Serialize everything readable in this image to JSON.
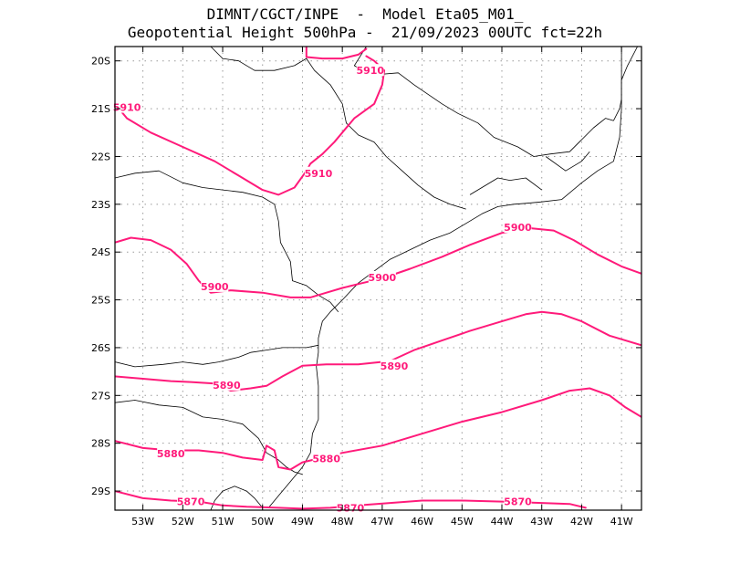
{
  "header": {
    "line1": "DIMNT/CGCT/INPE  -  Model Eta05_M01_",
    "line2": "Geopotential Height 500hPa -  21/09/2023 00UTC fct=22h"
  },
  "colors": {
    "contour": "#ff1a7a",
    "coast": "#000000",
    "grid": "#9a9a9a",
    "frame": "#000000"
  },
  "chart_data": {
    "type": "contour-map",
    "variable": "Geopotential Height 500hPa",
    "units": "gpm",
    "xlim": [
      -53.7,
      -40.5
    ],
    "ylim": [
      -29.4,
      -19.7
    ],
    "x_ticks": [
      {
        "value": -53,
        "label": "53W"
      },
      {
        "value": -52,
        "label": "52W"
      },
      {
        "value": -51,
        "label": "51W"
      },
      {
        "value": -50,
        "label": "50W"
      },
      {
        "value": -49,
        "label": "49W"
      },
      {
        "value": -48,
        "label": "48W"
      },
      {
        "value": -47,
        "label": "47W"
      },
      {
        "value": -46,
        "label": "46W"
      },
      {
        "value": -45,
        "label": "45W"
      },
      {
        "value": -44,
        "label": "44W"
      },
      {
        "value": -43,
        "label": "43W"
      },
      {
        "value": -42,
        "label": "42W"
      },
      {
        "value": -41,
        "label": "41W"
      }
    ],
    "y_ticks": [
      {
        "value": -20,
        "label": "20S"
      },
      {
        "value": -21,
        "label": "21S"
      },
      {
        "value": -22,
        "label": "22S"
      },
      {
        "value": -23,
        "label": "23S"
      },
      {
        "value": -24,
        "label": "24S"
      },
      {
        "value": -25,
        "label": "25S"
      },
      {
        "value": -26,
        "label": "26S"
      },
      {
        "value": -27,
        "label": "27S"
      },
      {
        "value": -28,
        "label": "28S"
      },
      {
        "value": -29,
        "label": "29S"
      }
    ],
    "contours": [
      {
        "level": 5910,
        "points": [
          [
            -53.7,
            -20.9
          ],
          [
            -53.4,
            -21.2
          ],
          [
            -52.8,
            -21.5
          ],
          [
            -52.0,
            -21.8
          ],
          [
            -51.2,
            -22.1
          ],
          [
            -50.6,
            -22.4
          ],
          [
            -50.0,
            -22.7
          ],
          [
            -49.6,
            -22.8
          ],
          [
            -49.2,
            -22.65
          ],
          [
            -48.9,
            -22.3
          ],
          [
            -48.8,
            -22.15
          ],
          [
            -48.5,
            -21.95
          ],
          [
            -48.2,
            -21.7
          ],
          [
            -47.7,
            -21.2
          ],
          [
            -47.2,
            -20.9
          ],
          [
            -47.0,
            -20.5
          ],
          [
            -46.95,
            -20.2
          ],
          [
            -47.2,
            -20.0
          ],
          [
            -47.4,
            -19.9
          ]
        ]
      },
      {
        "level": 5910,
        "points": [
          [
            -48.9,
            -19.7
          ],
          [
            -48.9,
            -19.92
          ],
          [
            -48.5,
            -19.95
          ],
          [
            -48.0,
            -19.95
          ],
          [
            -47.6,
            -19.87
          ],
          [
            -47.4,
            -19.75
          ]
        ]
      },
      {
        "level": 5900,
        "points": [
          [
            -53.7,
            -23.8
          ],
          [
            -53.3,
            -23.7
          ],
          [
            -52.8,
            -23.75
          ],
          [
            -52.3,
            -23.95
          ],
          [
            -51.9,
            -24.25
          ],
          [
            -51.6,
            -24.6
          ],
          [
            -51.3,
            -24.85
          ],
          [
            -50.8,
            -24.8
          ],
          [
            -50.0,
            -24.85
          ],
          [
            -49.3,
            -24.95
          ],
          [
            -48.8,
            -24.95
          ],
          [
            -48.4,
            -24.85
          ],
          [
            -48.0,
            -24.75
          ],
          [
            -47.5,
            -24.65
          ],
          [
            -47.0,
            -24.55
          ],
          [
            -46.3,
            -24.35
          ],
          [
            -45.5,
            -24.1
          ],
          [
            -44.8,
            -23.85
          ],
          [
            -44.0,
            -23.6
          ],
          [
            -43.3,
            -23.5
          ],
          [
            -42.7,
            -23.55
          ],
          [
            -42.2,
            -23.75
          ],
          [
            -41.6,
            -24.05
          ],
          [
            -41.0,
            -24.3
          ],
          [
            -40.5,
            -24.45
          ]
        ]
      },
      {
        "level": 5890,
        "points": [
          [
            -53.7,
            -26.6
          ],
          [
            -53.0,
            -26.65
          ],
          [
            -52.3,
            -26.7
          ],
          [
            -51.8,
            -26.72
          ],
          [
            -51.2,
            -26.75
          ],
          [
            -50.8,
            -26.9
          ],
          [
            -50.3,
            -26.85
          ],
          [
            -49.9,
            -26.8
          ],
          [
            -49.5,
            -26.6
          ],
          [
            -49.0,
            -26.38
          ],
          [
            -48.4,
            -26.35
          ],
          [
            -47.6,
            -26.35
          ],
          [
            -46.8,
            -26.28
          ],
          [
            -46.2,
            -26.05
          ],
          [
            -45.5,
            -25.85
          ],
          [
            -44.8,
            -25.65
          ],
          [
            -44.0,
            -25.45
          ],
          [
            -43.4,
            -25.3
          ],
          [
            -43.0,
            -25.25
          ],
          [
            -42.5,
            -25.3
          ],
          [
            -42.0,
            -25.45
          ],
          [
            -41.3,
            -25.75
          ],
          [
            -40.5,
            -25.95
          ]
        ]
      },
      {
        "level": 5880,
        "points": [
          [
            -53.7,
            -27.95
          ],
          [
            -53.0,
            -28.1
          ],
          [
            -52.3,
            -28.15
          ],
          [
            -51.6,
            -28.15
          ],
          [
            -51.0,
            -28.2
          ],
          [
            -50.5,
            -28.3
          ],
          [
            -50.0,
            -28.35
          ],
          [
            -49.9,
            -28.05
          ],
          [
            -49.7,
            -28.15
          ],
          [
            -49.6,
            -28.5
          ],
          [
            -49.3,
            -28.55
          ],
          [
            -49.0,
            -28.4
          ],
          [
            -48.5,
            -28.3
          ],
          [
            -48.0,
            -28.2
          ],
          [
            -47.0,
            -28.05
          ],
          [
            -46.0,
            -27.8
          ],
          [
            -45.0,
            -27.55
          ],
          [
            -44.0,
            -27.35
          ],
          [
            -43.0,
            -27.1
          ],
          [
            -42.3,
            -26.9
          ],
          [
            -41.8,
            -26.85
          ],
          [
            -41.3,
            -27.0
          ],
          [
            -40.9,
            -27.25
          ],
          [
            -40.5,
            -27.45
          ]
        ]
      },
      {
        "level": 5870,
        "points": [
          [
            -53.7,
            -29.0
          ],
          [
            -53.0,
            -29.15
          ],
          [
            -52.3,
            -29.2
          ],
          [
            -51.6,
            -29.22
          ],
          [
            -51.0,
            -29.3
          ],
          [
            -50.4,
            -29.33
          ],
          [
            -49.6,
            -29.35
          ],
          [
            -49.0,
            -29.37
          ],
          [
            -48.3,
            -29.35
          ],
          [
            -47.6,
            -29.3
          ],
          [
            -46.8,
            -29.25
          ],
          [
            -46.0,
            -29.2
          ],
          [
            -45.0,
            -29.2
          ],
          [
            -44.0,
            -29.22
          ],
          [
            -43.0,
            -29.25
          ],
          [
            -42.3,
            -29.27
          ],
          [
            -41.9,
            -29.35
          ]
        ]
      }
    ],
    "labels": [
      {
        "text": "5910",
        "lon": -53.4,
        "lat": -20.97
      },
      {
        "text": "5910",
        "lon": -47.3,
        "lat": -20.2
      },
      {
        "text": "5910",
        "lon": -48.6,
        "lat": -22.35
      },
      {
        "text": "5900",
        "lon": -51.2,
        "lat": -24.72
      },
      {
        "text": "5900",
        "lon": -47.0,
        "lat": -24.53
      },
      {
        "text": "5900",
        "lon": -43.6,
        "lat": -23.48
      },
      {
        "text": "5890",
        "lon": -50.9,
        "lat": -26.78
      },
      {
        "text": "5890",
        "lon": -46.7,
        "lat": -26.38
      },
      {
        "text": "5880",
        "lon": -52.3,
        "lat": -28.22
      },
      {
        "text": "5880",
        "lon": -48.4,
        "lat": -28.32
      },
      {
        "text": "5870",
        "lon": -51.8,
        "lat": -29.22
      },
      {
        "text": "5870",
        "lon": -47.8,
        "lat": -29.35
      },
      {
        "text": "5870",
        "lon": -43.6,
        "lat": -29.22
      }
    ],
    "boundaries": [
      [
        [
          -47.4,
          -19.7
        ],
        [
          -47.7,
          -20.1
        ],
        [
          -47.3,
          -20.3
        ],
        [
          -46.6,
          -20.25
        ],
        [
          -46.2,
          -20.5
        ],
        [
          -45.5,
          -20.9
        ],
        [
          -45.1,
          -21.1
        ],
        [
          -44.6,
          -21.3
        ],
        [
          -44.2,
          -21.6
        ],
        [
          -43.6,
          -21.8
        ],
        [
          -43.2,
          -22.0
        ],
        [
          -42.8,
          -21.95
        ],
        [
          -42.3,
          -21.9
        ],
        [
          -42.0,
          -21.65
        ],
        [
          -41.7,
          -21.4
        ],
        [
          -41.4,
          -21.2
        ],
        [
          -41.2,
          -21.25
        ]
      ],
      [
        [
          -41.2,
          -21.25
        ],
        [
          -41.05,
          -21.0
        ],
        [
          -41.0,
          -20.8
        ],
        [
          -41.0,
          -20.4
        ],
        [
          -41.0,
          -20.0
        ],
        [
          -41.0,
          -19.7
        ]
      ],
      [
        [
          -40.6,
          -19.7
        ],
        [
          -40.85,
          -20.1
        ],
        [
          -41.0,
          -20.4
        ],
        [
          -41.0,
          -21.0
        ],
        [
          -41.05,
          -21.6
        ],
        [
          -41.2,
          -22.1
        ],
        [
          -41.6,
          -22.3
        ],
        [
          -42.0,
          -22.55
        ],
        [
          -42.5,
          -22.9
        ],
        [
          -43.0,
          -22.95
        ],
        [
          -43.4,
          -22.98
        ],
        [
          -43.7,
          -23.0
        ],
        [
          -44.1,
          -23.05
        ],
        [
          -44.5,
          -23.2
        ],
        [
          -44.9,
          -23.4
        ],
        [
          -45.3,
          -23.6
        ],
        [
          -45.8,
          -23.75
        ],
        [
          -46.3,
          -23.95
        ],
        [
          -46.8,
          -24.15
        ],
        [
          -47.2,
          -24.4
        ],
        [
          -47.6,
          -24.65
        ],
        [
          -48.0,
          -25.0
        ],
        [
          -48.3,
          -25.25
        ],
        [
          -48.5,
          -25.45
        ],
        [
          -48.6,
          -25.8
        ],
        [
          -48.6,
          -26.1
        ],
        [
          -48.65,
          -26.4
        ],
        [
          -48.6,
          -26.8
        ],
        [
          -48.6,
          -27.2
        ],
        [
          -48.6,
          -27.5
        ],
        [
          -48.75,
          -27.8
        ],
        [
          -48.8,
          -28.2
        ],
        [
          -49.0,
          -28.5
        ],
        [
          -49.3,
          -28.8
        ],
        [
          -49.6,
          -29.1
        ],
        [
          -49.85,
          -29.35
        ]
      ],
      [
        [
          -42.9,
          -22.0
        ],
        [
          -42.4,
          -22.3
        ],
        [
          -42.0,
          -22.1
        ],
        [
          -41.8,
          -21.9
        ]
      ],
      [
        [
          -44.8,
          -22.8
        ],
        [
          -44.4,
          -22.6
        ],
        [
          -44.1,
          -22.45
        ],
        [
          -43.8,
          -22.5
        ],
        [
          -43.4,
          -22.45
        ],
        [
          -43.0,
          -22.7
        ]
      ],
      [
        [
          -53.7,
          -22.45
        ],
        [
          -53.2,
          -22.35
        ],
        [
          -52.6,
          -22.3
        ],
        [
          -52.0,
          -22.55
        ],
        [
          -51.5,
          -22.65
        ],
        [
          -51.0,
          -22.7
        ],
        [
          -50.5,
          -22.75
        ],
        [
          -50.0,
          -22.85
        ],
        [
          -49.7,
          -23.0
        ],
        [
          -49.6,
          -23.35
        ],
        [
          -49.55,
          -23.8
        ],
        [
          -49.3,
          -24.2
        ],
        [
          -49.25,
          -24.6
        ],
        [
          -48.9,
          -24.7
        ],
        [
          -48.6,
          -24.9
        ],
        [
          -48.3,
          -25.05
        ],
        [
          -48.1,
          -25.25
        ]
      ],
      [
        [
          -53.7,
          -26.3
        ],
        [
          -53.2,
          -26.4
        ],
        [
          -52.5,
          -26.35
        ],
        [
          -52.0,
          -26.3
        ],
        [
          -51.5,
          -26.35
        ],
        [
          -51.1,
          -26.3
        ],
        [
          -50.6,
          -26.2
        ],
        [
          -50.3,
          -26.1
        ],
        [
          -49.9,
          -26.05
        ],
        [
          -49.5,
          -26.0
        ],
        [
          -49.3,
          -26.0
        ],
        [
          -48.9,
          -26.0
        ],
        [
          -48.6,
          -25.95
        ]
      ],
      [
        [
          -53.7,
          -27.15
        ],
        [
          -53.2,
          -27.1
        ],
        [
          -52.6,
          -27.2
        ],
        [
          -52.0,
          -27.25
        ],
        [
          -51.5,
          -27.45
        ],
        [
          -51.0,
          -27.5
        ],
        [
          -50.5,
          -27.6
        ],
        [
          -50.1,
          -27.9
        ],
        [
          -49.9,
          -28.2
        ],
        [
          -49.6,
          -28.35
        ],
        [
          -49.4,
          -28.5
        ],
        [
          -49.2,
          -28.6
        ],
        [
          -49.0,
          -28.65
        ]
      ],
      [
        [
          -51.3,
          -29.4
        ],
        [
          -51.2,
          -29.2
        ],
        [
          -51.0,
          -29.0
        ],
        [
          -50.7,
          -28.9
        ],
        [
          -50.4,
          -29.0
        ],
        [
          -50.2,
          -29.15
        ],
        [
          -50.0,
          -29.35
        ]
      ],
      [
        [
          -51.3,
          -19.7
        ],
        [
          -51.0,
          -19.95
        ],
        [
          -50.6,
          -20.0
        ],
        [
          -50.2,
          -20.2
        ],
        [
          -49.7,
          -20.2
        ],
        [
          -49.2,
          -20.1
        ],
        [
          -48.9,
          -19.95
        ],
        [
          -48.7,
          -20.2
        ],
        [
          -48.3,
          -20.5
        ],
        [
          -48.0,
          -20.9
        ],
        [
          -47.9,
          -21.3
        ],
        [
          -47.6,
          -21.55
        ],
        [
          -47.2,
          -21.7
        ],
        [
          -46.9,
          -22.0
        ],
        [
          -46.5,
          -22.3
        ],
        [
          -46.1,
          -22.6
        ],
        [
          -45.7,
          -22.85
        ],
        [
          -45.3,
          -23.0
        ],
        [
          -44.9,
          -23.1
        ]
      ]
    ]
  }
}
